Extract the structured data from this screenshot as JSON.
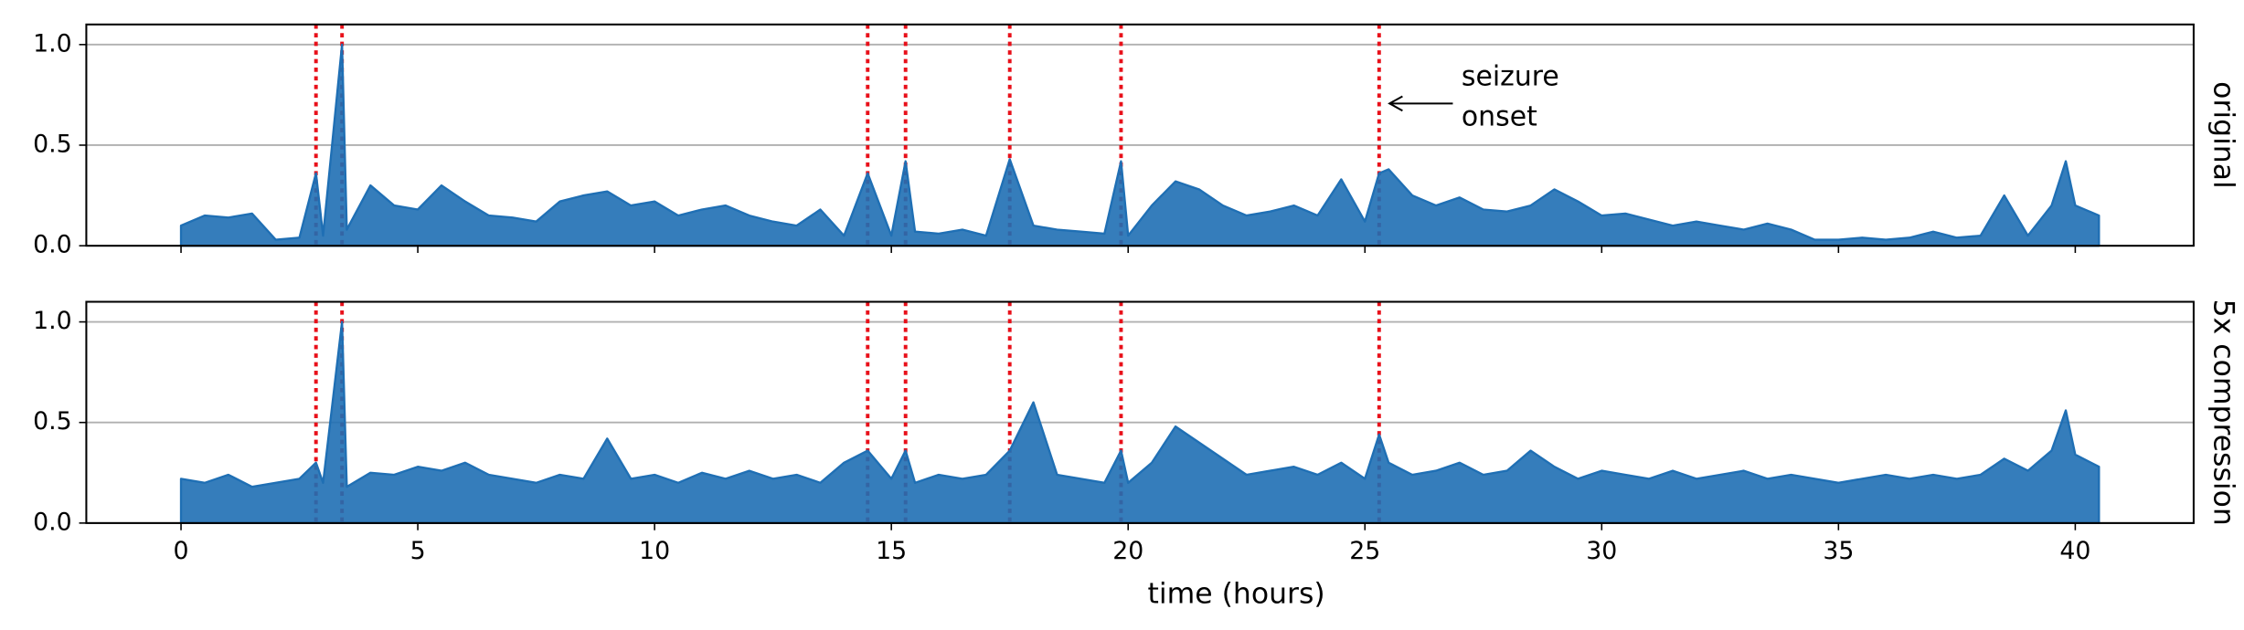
{
  "chart_data": [
    {
      "type": "line",
      "panel_label": "original",
      "color": "#1f6fb4",
      "onset_color": "#e8101a",
      "grid": true,
      "xlim": [
        -2.0,
        42.5
      ],
      "ylim": [
        0,
        1.1
      ],
      "xticks": [
        0,
        5,
        10,
        15,
        20,
        25,
        30,
        35,
        40
      ],
      "yticks": [
        {
          "value": 0,
          "label": "0.0"
        },
        {
          "value": 0.5,
          "label": "0.5"
        },
        {
          "value": 1,
          "label": "1.0"
        }
      ],
      "onsets": [
        2.85,
        3.4,
        14.5,
        15.3,
        17.5,
        19.85,
        25.3
      ],
      "annotation": [
        "seizure",
        "onset"
      ],
      "x": [
        0,
        0.5,
        1,
        1.5,
        2,
        2.5,
        2.85,
        3,
        3.4,
        3.5,
        4,
        4.5,
        5,
        5.5,
        6,
        6.5,
        7,
        7.5,
        8,
        8.5,
        9,
        9.5,
        10,
        10.5,
        11,
        11.5,
        12,
        12.5,
        13,
        13.5,
        14,
        14.5,
        15,
        15.3,
        15.5,
        16,
        16.5,
        17,
        17.5,
        18,
        18.5,
        19,
        19.5,
        19.85,
        20,
        20.5,
        21,
        21.5,
        22,
        22.5,
        23,
        23.5,
        24,
        24.5,
        25,
        25.3,
        25.5,
        26,
        26.5,
        27,
        27.5,
        28,
        28.5,
        29,
        29.5,
        30,
        30.5,
        31,
        31.5,
        32,
        32.5,
        33,
        33.5,
        34,
        34.5,
        35,
        35.5,
        36,
        36.5,
        37,
        37.5,
        38,
        38.5,
        39,
        39.5,
        39.8,
        40,
        40.5
      ],
      "values": [
        0.1,
        0.15,
        0.14,
        0.16,
        0.03,
        0.04,
        0.36,
        0.05,
        1.0,
        0.08,
        0.3,
        0.2,
        0.18,
        0.3,
        0.22,
        0.15,
        0.14,
        0.12,
        0.22,
        0.25,
        0.27,
        0.2,
        0.22,
        0.15,
        0.18,
        0.2,
        0.15,
        0.12,
        0.1,
        0.18,
        0.05,
        0.36,
        0.05,
        0.42,
        0.07,
        0.06,
        0.08,
        0.05,
        0.43,
        0.1,
        0.08,
        0.07,
        0.06,
        0.42,
        0.05,
        0.2,
        0.32,
        0.28,
        0.2,
        0.15,
        0.17,
        0.2,
        0.15,
        0.33,
        0.12,
        0.36,
        0.38,
        0.25,
        0.2,
        0.24,
        0.18,
        0.17,
        0.2,
        0.28,
        0.22,
        0.15,
        0.16,
        0.13,
        0.1,
        0.12,
        0.1,
        0.08,
        0.11,
        0.08,
        0.03,
        0.03,
        0.04,
        0.03,
        0.04,
        0.07,
        0.04,
        0.05,
        0.25,
        0.05,
        0.2,
        0.42,
        0.2,
        0.15
      ]
    },
    {
      "type": "line",
      "panel_label": "5x compression",
      "color": "#1f6fb4",
      "onset_color": "#e8101a",
      "grid": true,
      "xlabel": "time (hours)",
      "xlim": [
        -2.0,
        42.5
      ],
      "ylim": [
        0,
        1.1
      ],
      "xticks": [
        0,
        5,
        10,
        15,
        20,
        25,
        30,
        35,
        40
      ],
      "yticks": [
        {
          "value": 0,
          "label": "0.0"
        },
        {
          "value": 0.5,
          "label": "0.5"
        },
        {
          "value": 1,
          "label": "1.0"
        }
      ],
      "onsets": [
        2.85,
        3.4,
        14.5,
        15.3,
        17.5,
        19.85,
        25.3
      ],
      "x": [
        0,
        0.5,
        1,
        1.5,
        2,
        2.5,
        2.85,
        3,
        3.4,
        3.5,
        4,
        4.5,
        5,
        5.5,
        6,
        6.5,
        7,
        7.5,
        8,
        8.5,
        9,
        9.5,
        10,
        10.5,
        11,
        11.5,
        12,
        12.5,
        13,
        13.5,
        14,
        14.5,
        15,
        15.3,
        15.5,
        16,
        16.5,
        17,
        17.5,
        18,
        18.5,
        19,
        19.5,
        19.85,
        20,
        20.5,
        21,
        21.5,
        22,
        22.5,
        23,
        23.5,
        24,
        24.5,
        25,
        25.3,
        25.5,
        26,
        26.5,
        27,
        27.5,
        28,
        28.5,
        29,
        29.5,
        30,
        30.5,
        31,
        31.5,
        32,
        32.5,
        33,
        33.5,
        34,
        34.5,
        35,
        35.5,
        36,
        36.5,
        37,
        37.5,
        38,
        38.5,
        39,
        39.5,
        39.8,
        40,
        40.5
      ],
      "values": [
        0.22,
        0.2,
        0.24,
        0.18,
        0.2,
        0.22,
        0.3,
        0.2,
        1.0,
        0.18,
        0.25,
        0.24,
        0.28,
        0.26,
        0.3,
        0.24,
        0.22,
        0.2,
        0.24,
        0.22,
        0.42,
        0.22,
        0.24,
        0.2,
        0.25,
        0.22,
        0.26,
        0.22,
        0.24,
        0.2,
        0.3,
        0.36,
        0.22,
        0.36,
        0.2,
        0.24,
        0.22,
        0.24,
        0.36,
        0.6,
        0.24,
        0.22,
        0.2,
        0.36,
        0.2,
        0.3,
        0.48,
        0.4,
        0.32,
        0.24,
        0.26,
        0.28,
        0.24,
        0.3,
        0.22,
        0.44,
        0.3,
        0.24,
        0.26,
        0.3,
        0.24,
        0.26,
        0.36,
        0.28,
        0.22,
        0.26,
        0.24,
        0.22,
        0.26,
        0.22,
        0.24,
        0.26,
        0.22,
        0.24,
        0.22,
        0.2,
        0.22,
        0.24,
        0.22,
        0.24,
        0.22,
        0.24,
        0.32,
        0.26,
        0.36,
        0.56,
        0.34,
        0.28
      ]
    }
  ]
}
